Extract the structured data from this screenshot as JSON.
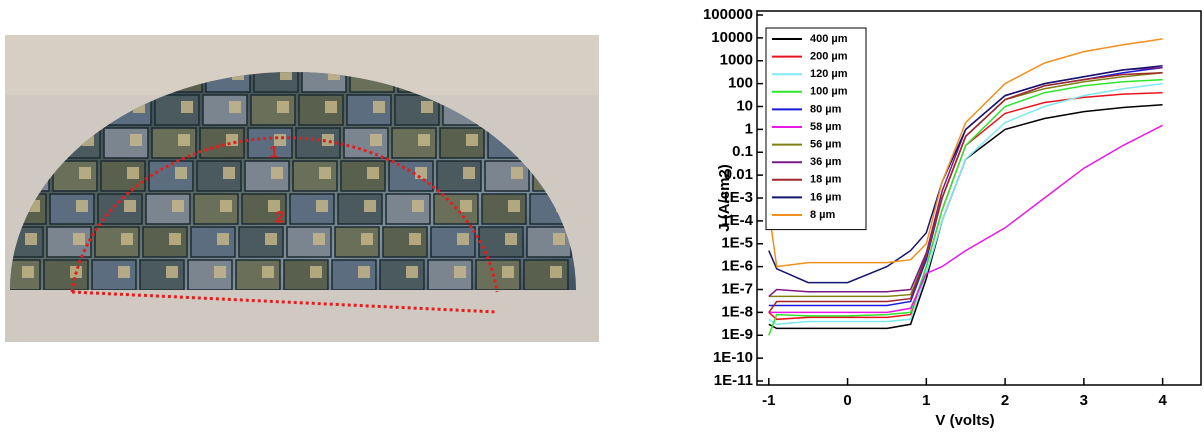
{
  "photo": {
    "labels": [
      "1",
      "2"
    ]
  },
  "chart_data": {
    "type": "line",
    "log_y": true,
    "xlabel": "V (volts)",
    "ylabel": "J (A/cm2)",
    "xlim": [
      -1.15,
      4.5
    ],
    "xticks": [
      -1,
      0,
      1,
      2,
      3,
      4
    ],
    "ylim": [
      1e-11,
      100000
    ],
    "yticks": [
      100000,
      10000,
      1000,
      100,
      10,
      1,
      0.1,
      0.01,
      {
        "value": 0.001,
        "label": "1E-3"
      },
      {
        "value": 0.0001,
        "label": "1E-4"
      },
      {
        "value": 1e-05,
        "label": "1E-5"
      },
      {
        "value": 1e-06,
        "label": "1E-6"
      },
      {
        "value": 1e-07,
        "label": "1E-7"
      },
      {
        "value": 1e-08,
        "label": "1E-8"
      },
      {
        "value": 1e-09,
        "label": "1E-9"
      },
      {
        "value": 1e-10,
        "label": "1E-10"
      },
      {
        "value": 1e-11,
        "label": "1E-11"
      }
    ],
    "legend": "upper-left",
    "x": [
      -1,
      -0.9,
      -0.5,
      0,
      0.5,
      0.8,
      1,
      1.2,
      1.5,
      2,
      2.5,
      3,
      3.5,
      4
    ],
    "series": [
      {
        "name": "400 µm",
        "color": "#000000",
        "values": [
          3e-09,
          2e-09,
          2e-09,
          2e-09,
          2e-09,
          3e-09,
          3e-07,
          0.0001,
          0.05,
          1,
          3,
          6,
          9,
          12
        ]
      },
      {
        "name": "200 µm",
        "color": "#e8141c",
        "values": [
          1e-08,
          5e-09,
          6e-09,
          6e-09,
          6e-09,
          8e-09,
          1e-06,
          0.0003,
          0.2,
          5,
          15,
          25,
          35,
          40
        ]
      },
      {
        "name": "120 µm",
        "color": "#7fe8f0",
        "values": [
          5e-09,
          3e-09,
          4e-09,
          4e-09,
          4e-09,
          5e-09,
          5e-07,
          0.0001,
          0.05,
          2,
          10,
          30,
          60,
          100
        ]
      },
      {
        "name": "100 µm",
        "color": "#2ee62e",
        "values": [
          1e-09,
          8e-09,
          7e-09,
          7e-09,
          8e-09,
          1e-08,
          1e-06,
          0.0003,
          0.2,
          10,
          40,
          80,
          120,
          150
        ]
      },
      {
        "name": "80 µm",
        "color": "#1a1adc",
        "values": [
          2e-08,
          2e-08,
          2e-08,
          2e-08,
          2e-08,
          3e-08,
          2e-06,
          0.001,
          0.5,
          20,
          80,
          150,
          300,
          500
        ]
      },
      {
        "name": "58 µm",
        "color": "#e619e6",
        "values": [
          1e-08,
          1e-08,
          1e-08,
          1e-08,
          1e-08,
          1.5e-08,
          5e-07,
          1e-06,
          5e-06,
          5e-05,
          0.001,
          0.02,
          0.2,
          1.5
        ]
      },
      {
        "name": "56 µm",
        "color": "#7f7f14",
        "values": [
          5e-08,
          5e-08,
          5e-08,
          5e-08,
          5e-08,
          6e-08,
          3e-06,
          0.001,
          0.5,
          20,
          60,
          120,
          200,
          300
        ]
      },
      {
        "name": "36 µm",
        "color": "#7a1a86",
        "values": [
          5e-08,
          1e-07,
          8e-08,
          8e-08,
          8e-08,
          1e-07,
          4e-06,
          0.002,
          1,
          30,
          100,
          200,
          400,
          500
        ]
      },
      {
        "name": "18 µm",
        "color": "#a0262a",
        "values": [
          1e-08,
          3e-08,
          3e-08,
          3e-08,
          3e-08,
          4e-08,
          3e-06,
          0.001,
          0.5,
          20,
          80,
          150,
          250,
          300
        ]
      },
      {
        "name": "16 µm",
        "color": "#14146e",
        "values": [
          5e-06,
          8e-07,
          2e-07,
          2e-07,
          1e-06,
          5e-06,
          3e-05,
          0.005,
          1,
          30,
          100,
          200,
          400,
          600
        ]
      },
      {
        "name": "8 µm",
        "color": "#f0901e",
        "values": [
          0.0003,
          1e-06,
          1.5e-06,
          1.5e-06,
          1.5e-06,
          2e-06,
          1e-05,
          0.005,
          2,
          100,
          800,
          2500,
          5000,
          9000
        ]
      }
    ]
  }
}
